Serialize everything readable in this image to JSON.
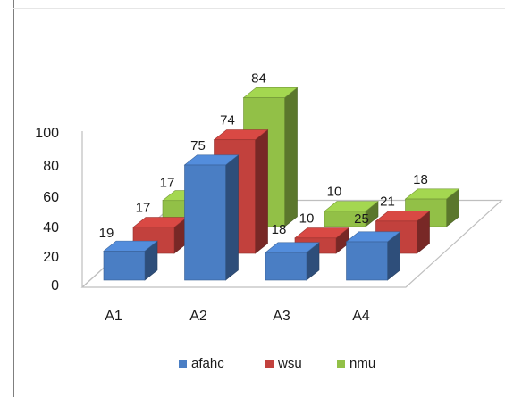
{
  "chart_data": {
    "type": "bar",
    "subtype": "3d-clustered-column",
    "categories": [
      "A1",
      "A2",
      "A3",
      "A4"
    ],
    "series": [
      {
        "name": "afahc",
        "values": [
          19,
          75,
          18,
          25
        ],
        "color": "#4a7ec4"
      },
      {
        "name": "wsu",
        "values": [
          17,
          74,
          10,
          21
        ],
        "color": "#c2413d"
      },
      {
        "name": "nmu",
        "values": [
          17,
          84,
          10,
          18
        ],
        "color": "#92c047"
      }
    ],
    "y_ticks": [
      0,
      20,
      40,
      60,
      80,
      100
    ],
    "ylim": [
      0,
      100
    ],
    "legend_position": "bottom",
    "grid": false,
    "title": "",
    "xlabel": "",
    "ylabel": ""
  }
}
